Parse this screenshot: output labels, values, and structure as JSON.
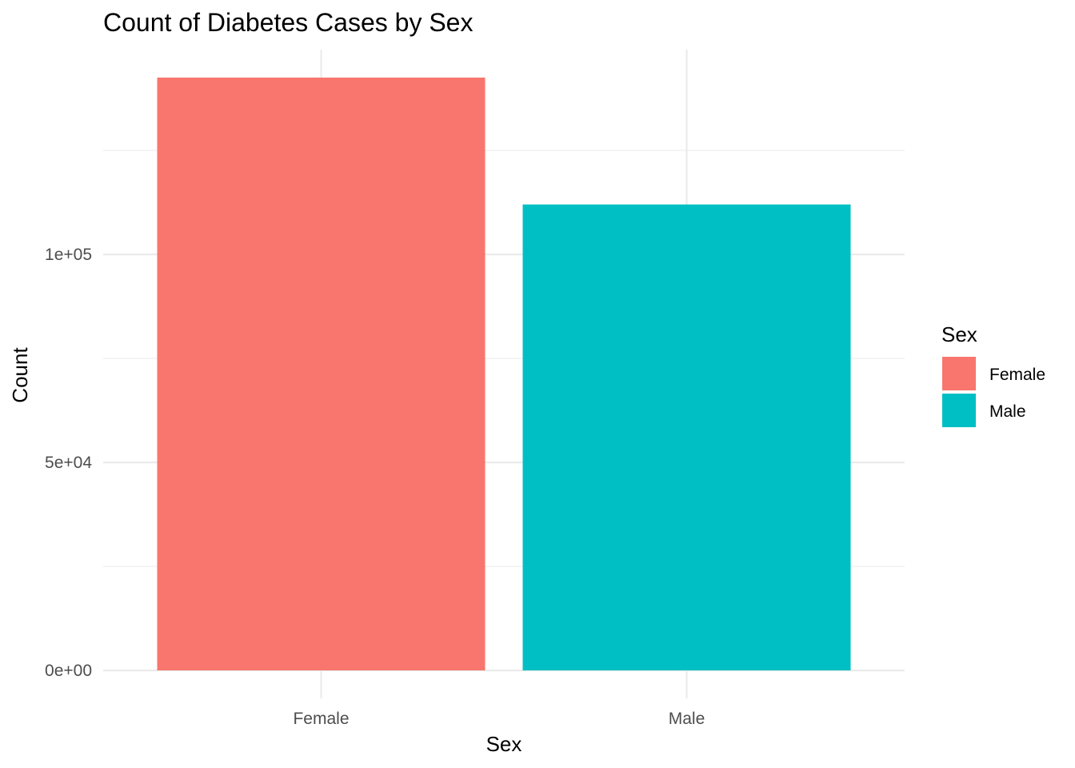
{
  "chart_data": {
    "type": "bar",
    "title": "Count of Diabetes Cases by Sex",
    "xlabel": "Sex",
    "ylabel": "Count",
    "categories": [
      "Female",
      "Male"
    ],
    "values": [
      142500,
      112000
    ],
    "colors": [
      "#F8766D",
      "#00BFC4"
    ],
    "ylim": [
      0,
      150000
    ],
    "y_ticks": [
      {
        "value": 0,
        "label": "0e+00"
      },
      {
        "value": 50000,
        "label": "5e+04"
      },
      {
        "value": 100000,
        "label": "1e+05"
      }
    ],
    "y_minor_ticks": [
      25000,
      75000,
      125000
    ],
    "grid": true,
    "legend": {
      "title": "Sex",
      "position": "right",
      "entries": [
        {
          "label": "Female",
          "color": "#F8766D"
        },
        {
          "label": "Male",
          "color": "#00BFC4"
        }
      ]
    }
  }
}
